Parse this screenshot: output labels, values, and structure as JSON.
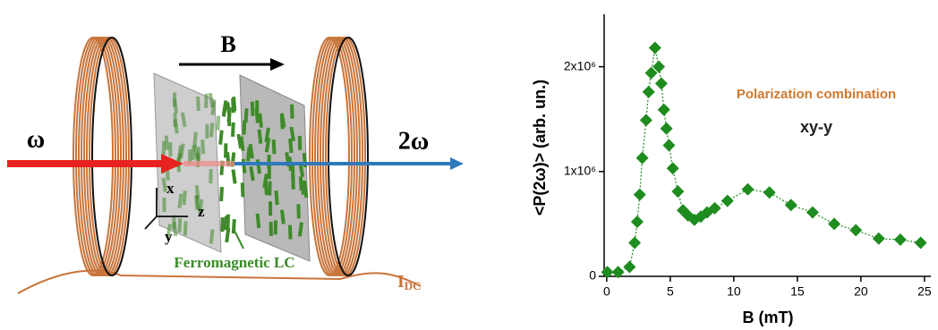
{
  "diagram": {
    "field_label": "B",
    "input_label": "ω",
    "output_label": "2ω",
    "axis_x": "x",
    "axis_z": "z",
    "axis_y": "y",
    "sample_label": "Ferromagnetic LC",
    "current_label": "I",
    "current_subscript": "DC"
  },
  "chart_data": {
    "type": "scatter",
    "xlabel": "B (mT)",
    "ylabel": "<P(2ω)> (arb. un.)",
    "color": "#1e8c1e",
    "annotations": [
      "Polarization combination",
      "xy-y"
    ],
    "x": [
      0.05,
      0.9,
      1.8,
      2.2,
      2.4,
      2.6,
      2.8,
      3.1,
      3.3,
      3.5,
      3.8,
      4.1,
      4.3,
      4.5,
      4.7,
      4.9,
      5.2,
      5.6,
      6.0,
      6.4,
      6.9,
      7.4,
      7.9,
      8.5,
      9.5,
      11.1,
      12.8,
      14.5,
      16.2,
      17.9,
      19.6,
      21.4,
      23.1,
      24.7
    ],
    "values": [
      40000,
      40000,
      90000,
      320000,
      520000,
      780000,
      1130000,
      1490000,
      1760000,
      1940000,
      2180000,
      2000000,
      1840000,
      1590000,
      1410000,
      1250000,
      1030000,
      810000,
      630000,
      580000,
      540000,
      570000,
      610000,
      650000,
      720000,
      830000,
      800000,
      680000,
      610000,
      500000,
      440000,
      360000,
      350000,
      320000
    ],
    "xlim": [
      -0.2,
      25.5
    ],
    "ylim": [
      0,
      2500000
    ],
    "xticks": [
      0,
      5,
      10,
      15,
      20,
      25
    ],
    "yticks": [
      0,
      {
        "value": 1000000,
        "label": "1x10⁶"
      },
      {
        "value": 2000000,
        "label": "2x10⁶"
      }
    ]
  }
}
